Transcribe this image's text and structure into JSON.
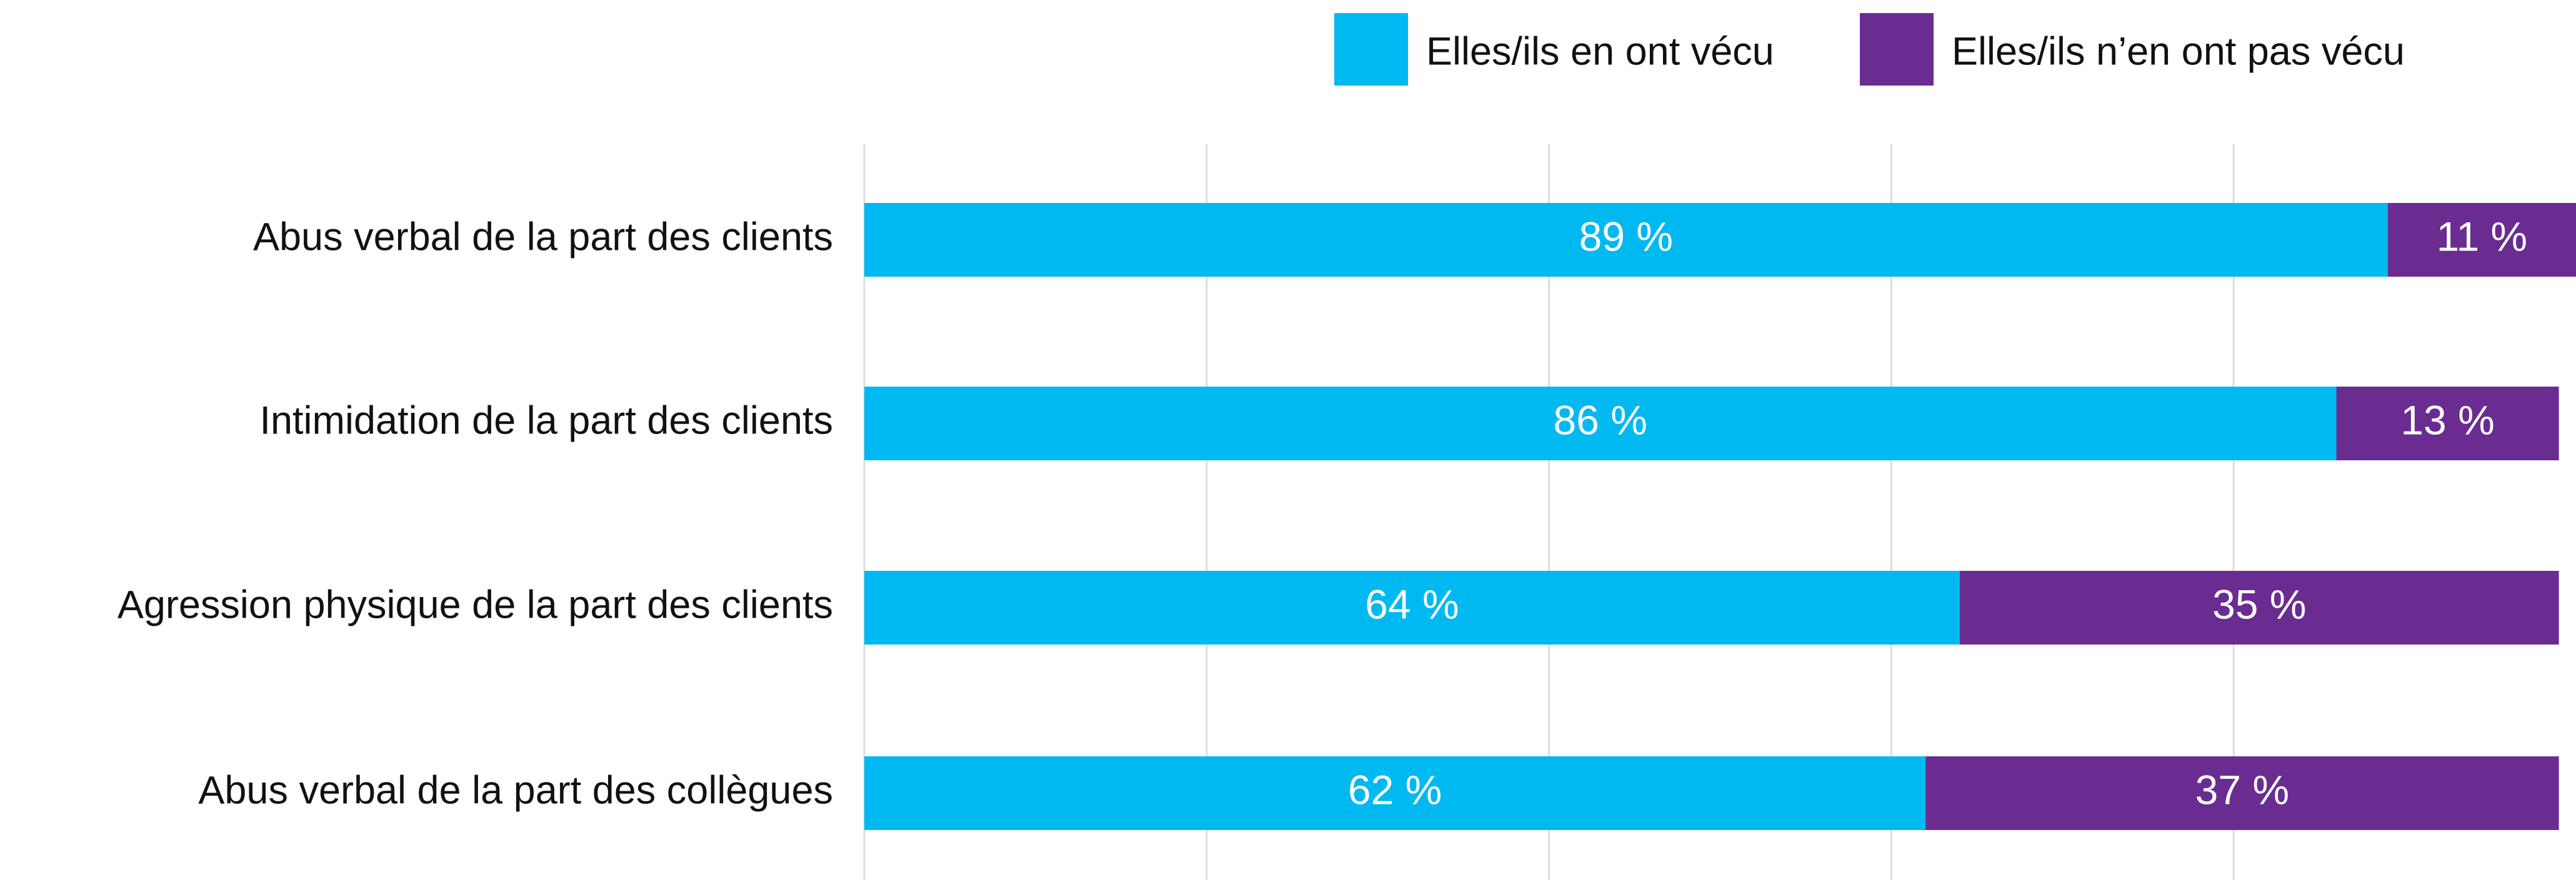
{
  "chart_data": {
    "type": "stacked_horizontal_bar",
    "categories": [
      "Abus verbal de la part des clients",
      "Intimidation de la part des clients",
      "Agression physique de la part des clients",
      "Abus verbal de la part des collègues"
    ],
    "series": [
      {
        "name": "Elles/ils en ont vécu",
        "color": "#00b9f1",
        "values": [
          89,
          86,
          64,
          62
        ],
        "value_labels": [
          "89 %",
          "86 %",
          "64 %",
          "62 %"
        ]
      },
      {
        "name": "Elles/ils n’en ont pas vécu",
        "color": "#6a2c91",
        "values": [
          11,
          13,
          35,
          37
        ],
        "value_labels": [
          "11 %",
          "13 %",
          "35 %",
          "37 %"
        ]
      }
    ],
    "xlim": [
      0,
      100
    ],
    "xticks": [
      0,
      20,
      40,
      60,
      80
    ],
    "grid": true,
    "legend": "top-right"
  }
}
